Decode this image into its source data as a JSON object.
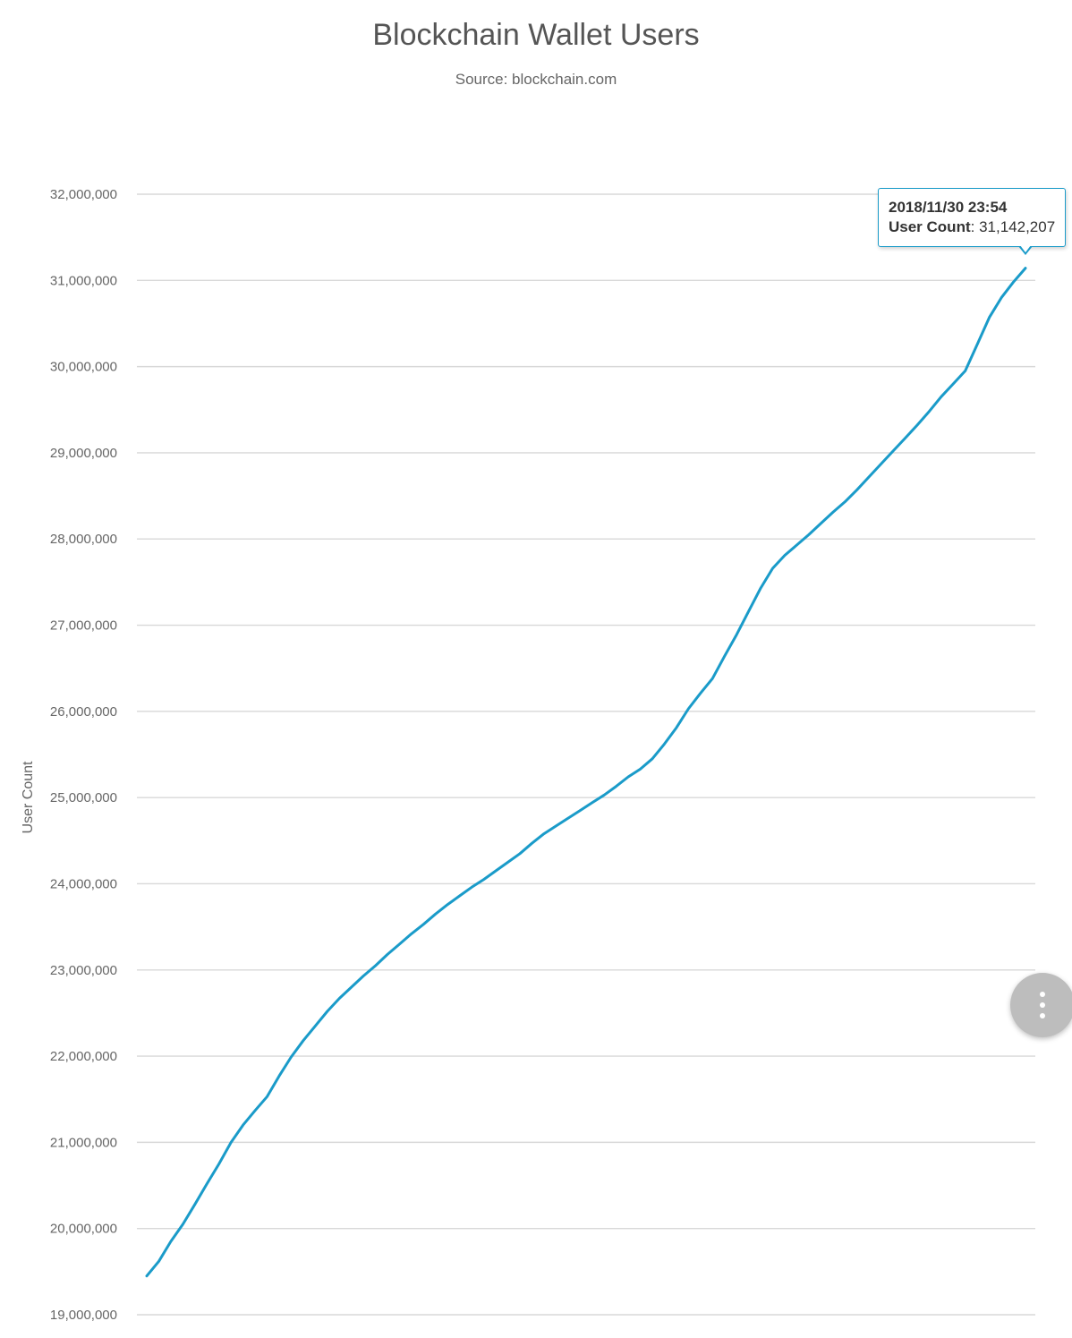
{
  "chart_data": {
    "type": "line",
    "title": "Blockchain Wallet Users",
    "subtitle": "Source: blockchain.com",
    "ylabel": "User Count",
    "xlabel": "",
    "ylim": [
      19000000,
      32000000
    ],
    "yticks": [
      19000000,
      20000000,
      21000000,
      22000000,
      23000000,
      24000000,
      25000000,
      26000000,
      27000000,
      28000000,
      29000000,
      30000000,
      31000000,
      32000000
    ],
    "ytick_labels": [
      "19,000,000",
      "20,000,000",
      "21,000,000",
      "22,000,000",
      "23,000,000",
      "24,000,000",
      "25,000,000",
      "26,000,000",
      "27,000,000",
      "28,000,000",
      "29,000,000",
      "30,000,000",
      "31,000,000",
      "32,000,000"
    ],
    "grid": true,
    "series": [
      {
        "color": "#1a9bc9",
        "y": [
          19450000,
          19620000,
          19850000,
          20050000,
          20280000,
          20520000,
          20750000,
          21000000,
          21200000,
          21370000,
          21530000,
          21770000,
          21990000,
          22180000,
          22350000,
          22520000,
          22670000,
          22800000,
          22930000,
          23050000,
          23180000,
          23300000,
          23420000,
          23530000,
          23650000,
          23760000,
          23860000,
          23960000,
          24050000,
          24150000,
          24250000,
          24350000,
          24470000,
          24580000,
          24670000,
          24760000,
          24850000,
          24940000,
          25030000,
          25130000,
          25240000,
          25330000,
          25450000,
          25620000,
          25810000,
          26030000,
          26210000,
          26380000,
          26640000,
          26890000,
          27160000,
          27430000,
          27660000,
          27810000,
          27930000,
          28050000,
          28180000,
          28310000,
          28430000,
          28570000,
          28720000,
          28870000,
          29020000,
          29170000,
          29320000,
          29480000,
          29650000,
          29800000,
          29950000,
          30260000,
          30570000,
          30800000,
          30980000,
          31142207
        ]
      }
    ]
  },
  "tooltip": {
    "date": "2018/11/30 23:54",
    "key": "User Count",
    "value": "31,142,207"
  },
  "menu_button": {
    "icon": "more-vert-icon"
  }
}
